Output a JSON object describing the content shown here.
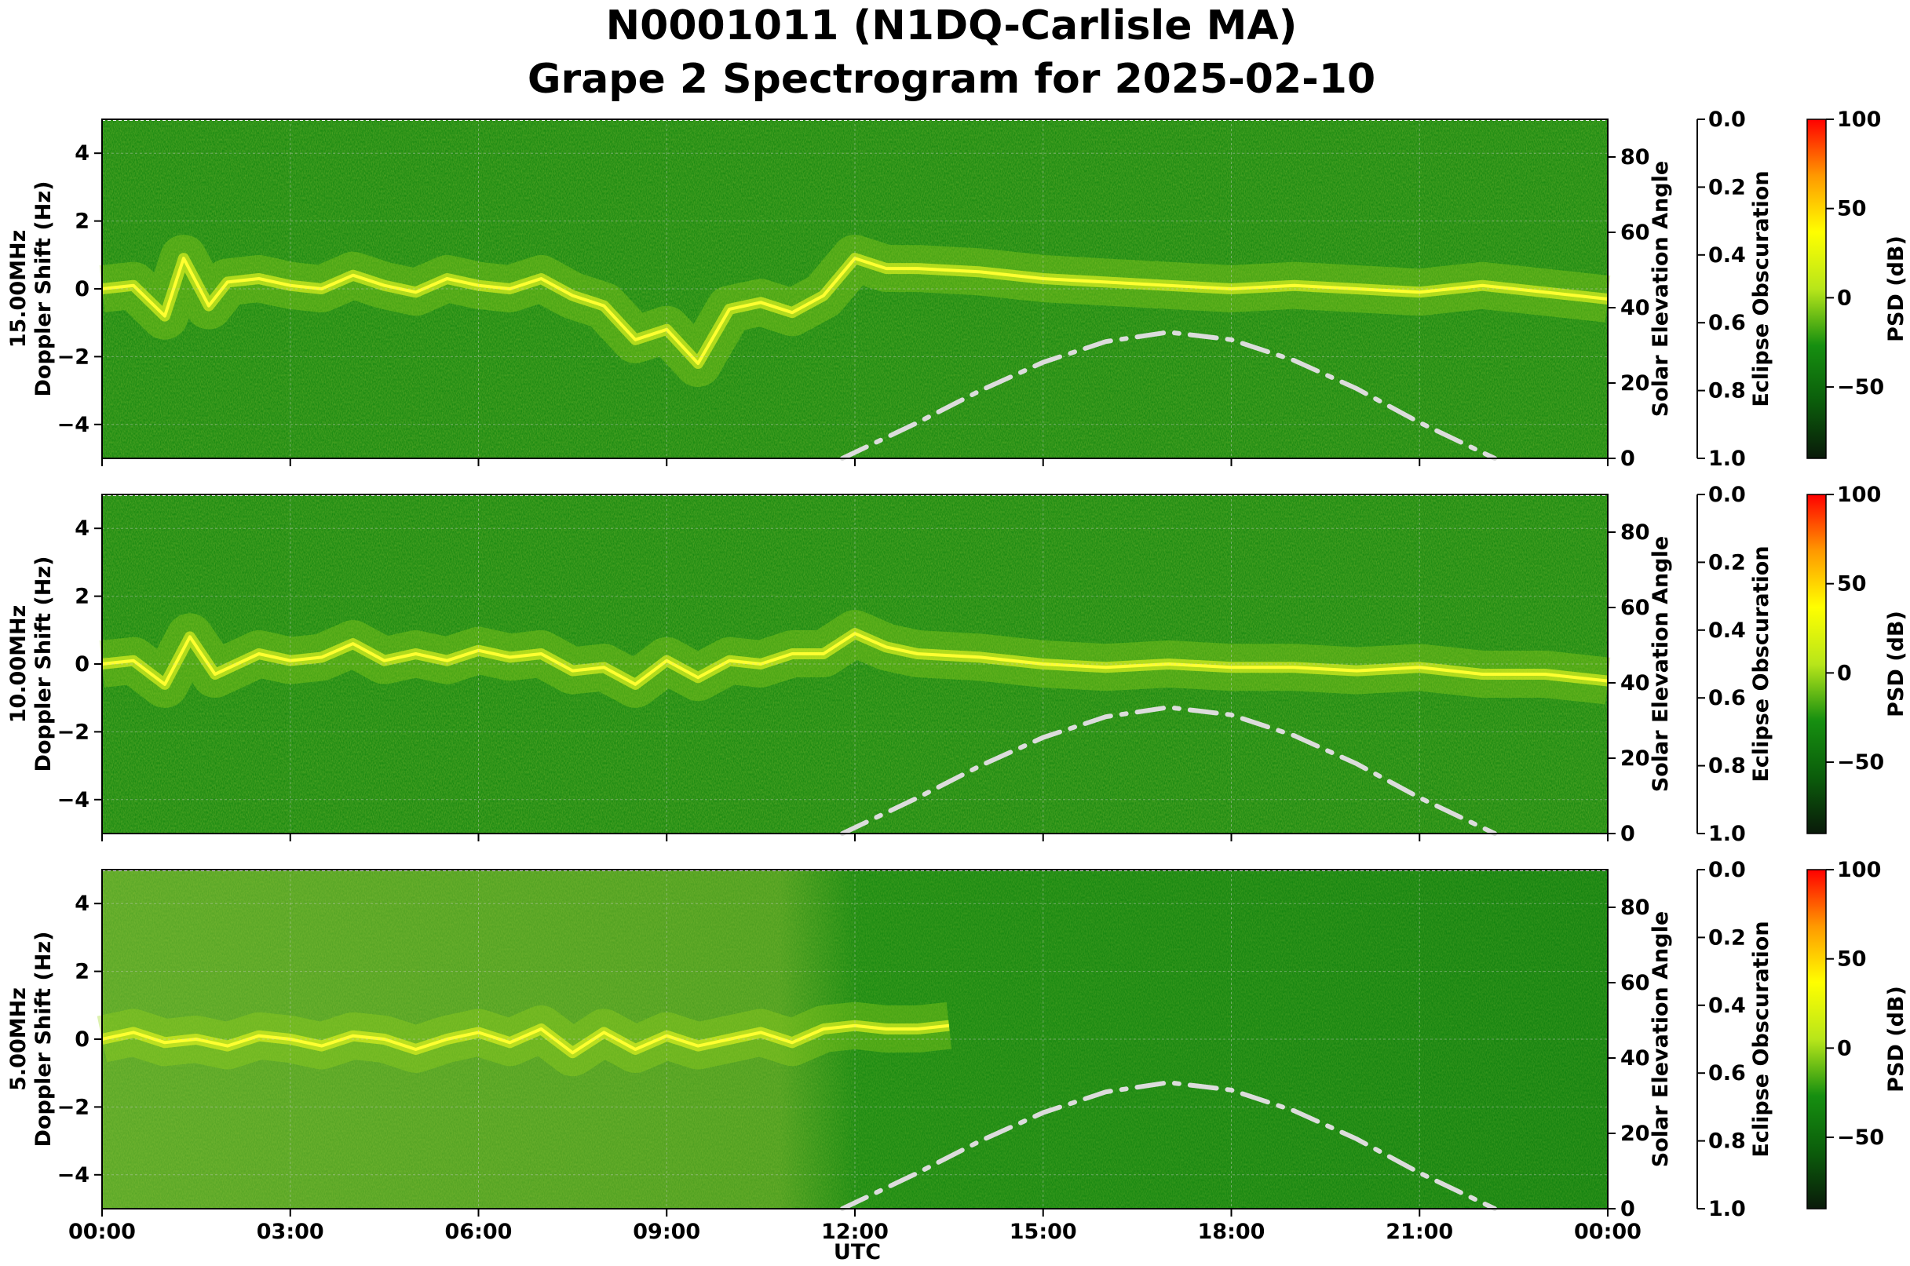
{
  "title_line1": "N0001011 (N1DQ-Carlisle MA)",
  "title_line2": "Grape 2 Spectrogram for 2025-02-10",
  "chart_data": {
    "type": "heatmap",
    "xlabel": "UTC",
    "x_ticks": [
      "00:00",
      "03:00",
      "06:00",
      "09:00",
      "12:00",
      "15:00",
      "18:00",
      "21:00",
      "00:00"
    ],
    "xlim_hours": [
      0,
      24
    ],
    "ylabel_suffix": "Doppler Shift (Hz)",
    "ylim": [
      -5,
      5
    ],
    "y_ticks": [
      4,
      2,
      0,
      -2,
      -4
    ],
    "y2_label": "Solar Elevation Angle",
    "y2_ticks": [
      80,
      60,
      40,
      20,
      0
    ],
    "y2lim": [
      0,
      90
    ],
    "y3_label": "Eclipse Obscuration",
    "y3_ticks": [
      "0.0",
      "0.2",
      "0.4",
      "0.6",
      "0.8",
      "1.0"
    ],
    "y3lim": [
      0,
      1
    ],
    "colorbar": {
      "label": "PSD (dB)",
      "ticks": [
        100,
        50,
        0,
        -50
      ],
      "range": [
        -90,
        100
      ],
      "colors": [
        "#0a1a0a",
        "#0b5d0b",
        "#168f10",
        "#b8e61a",
        "#ffff00",
        "#ff9900",
        "#ff0000"
      ]
    },
    "grid": true,
    "solar_elevation": {
      "style": "dash-dot",
      "color": "#dcdcdc",
      "points": [
        [
          11.8,
          0
        ],
        [
          13,
          9.5
        ],
        [
          14,
          18
        ],
        [
          15,
          25.5
        ],
        [
          16,
          31
        ],
        [
          17,
          33.5
        ],
        [
          18,
          31.5
        ],
        [
          19,
          26
        ],
        [
          20,
          18.5
        ],
        [
          21,
          9.5
        ],
        [
          22.2,
          0
        ]
      ]
    },
    "panels": [
      {
        "frequency": "15.00MHz",
        "carrier_trace": [
          [
            0,
            0
          ],
          [
            0.5,
            0.1
          ],
          [
            1,
            -0.8
          ],
          [
            1.3,
            0.9
          ],
          [
            1.7,
            -0.5
          ],
          [
            2,
            0.2
          ],
          [
            2.5,
            0.3
          ],
          [
            3,
            0.1
          ],
          [
            3.5,
            0.0
          ],
          [
            4,
            0.4
          ],
          [
            4.5,
            0.1
          ],
          [
            5,
            -0.1
          ],
          [
            5.5,
            0.3
          ],
          [
            6,
            0.1
          ],
          [
            6.5,
            0.0
          ],
          [
            7,
            0.3
          ],
          [
            7.5,
            -0.2
          ],
          [
            8,
            -0.5
          ],
          [
            8.5,
            -1.5
          ],
          [
            9,
            -1.2
          ],
          [
            9.5,
            -2.2
          ],
          [
            10,
            -0.6
          ],
          [
            10.5,
            -0.4
          ],
          [
            11,
            -0.7
          ],
          [
            11.5,
            -0.2
          ],
          [
            12,
            0.9
          ],
          [
            12.5,
            0.6
          ],
          [
            13,
            0.6
          ],
          [
            14,
            0.5
          ],
          [
            15,
            0.3
          ],
          [
            16,
            0.2
          ],
          [
            17,
            0.1
          ],
          [
            18,
            0.0
          ],
          [
            19,
            0.1
          ],
          [
            20,
            0.0
          ],
          [
            21,
            -0.1
          ],
          [
            22,
            0.1
          ],
          [
            23,
            -0.1
          ],
          [
            24,
            -0.3
          ]
        ]
      },
      {
        "frequency": "10.00MHz",
        "carrier_trace": [
          [
            0,
            0
          ],
          [
            0.5,
            0.1
          ],
          [
            1,
            -0.6
          ],
          [
            1.4,
            0.8
          ],
          [
            1.8,
            -0.3
          ],
          [
            2.5,
            0.3
          ],
          [
            3,
            0.1
          ],
          [
            3.5,
            0.2
          ],
          [
            4,
            0.6
          ],
          [
            4.5,
            0.1
          ],
          [
            5,
            0.3
          ],
          [
            5.5,
            0.1
          ],
          [
            6,
            0.4
          ],
          [
            6.5,
            0.2
          ],
          [
            7,
            0.3
          ],
          [
            7.5,
            -0.2
          ],
          [
            8,
            -0.1
          ],
          [
            8.5,
            -0.6
          ],
          [
            9,
            0.1
          ],
          [
            9.5,
            -0.4
          ],
          [
            10,
            0.1
          ],
          [
            10.5,
            0.0
          ],
          [
            11,
            0.3
          ],
          [
            11.5,
            0.3
          ],
          [
            12,
            0.9
          ],
          [
            12.5,
            0.5
          ],
          [
            13,
            0.3
          ],
          [
            14,
            0.2
          ],
          [
            15,
            0.0
          ],
          [
            16,
            -0.1
          ],
          [
            17,
            0.0
          ],
          [
            18,
            -0.1
          ],
          [
            19,
            -0.1
          ],
          [
            20,
            -0.2
          ],
          [
            21,
            -0.1
          ],
          [
            22,
            -0.3
          ],
          [
            23,
            -0.3
          ],
          [
            24,
            -0.5
          ]
        ]
      },
      {
        "frequency": "5.00MHz",
        "carrier_trace": [
          [
            0,
            0
          ],
          [
            0.5,
            0.2
          ],
          [
            1,
            -0.1
          ],
          [
            1.5,
            0.0
          ],
          [
            2,
            -0.2
          ],
          [
            2.5,
            0.1
          ],
          [
            3,
            0.0
          ],
          [
            3.5,
            -0.2
          ],
          [
            4,
            0.1
          ],
          [
            4.5,
            0.0
          ],
          [
            5,
            -0.3
          ],
          [
            5.5,
            0.0
          ],
          [
            6,
            0.2
          ],
          [
            6.5,
            -0.1
          ],
          [
            7,
            0.3
          ],
          [
            7.5,
            -0.4
          ],
          [
            8,
            0.2
          ],
          [
            8.5,
            -0.3
          ],
          [
            9,
            0.1
          ],
          [
            9.5,
            -0.2
          ],
          [
            10,
            0.0
          ],
          [
            10.5,
            0.2
          ],
          [
            11,
            -0.1
          ],
          [
            11.5,
            0.3
          ],
          [
            12,
            0.4
          ],
          [
            12.5,
            0.3
          ],
          [
            13,
            0.3
          ],
          [
            13.5,
            0.4
          ]
        ]
      }
    ]
  }
}
